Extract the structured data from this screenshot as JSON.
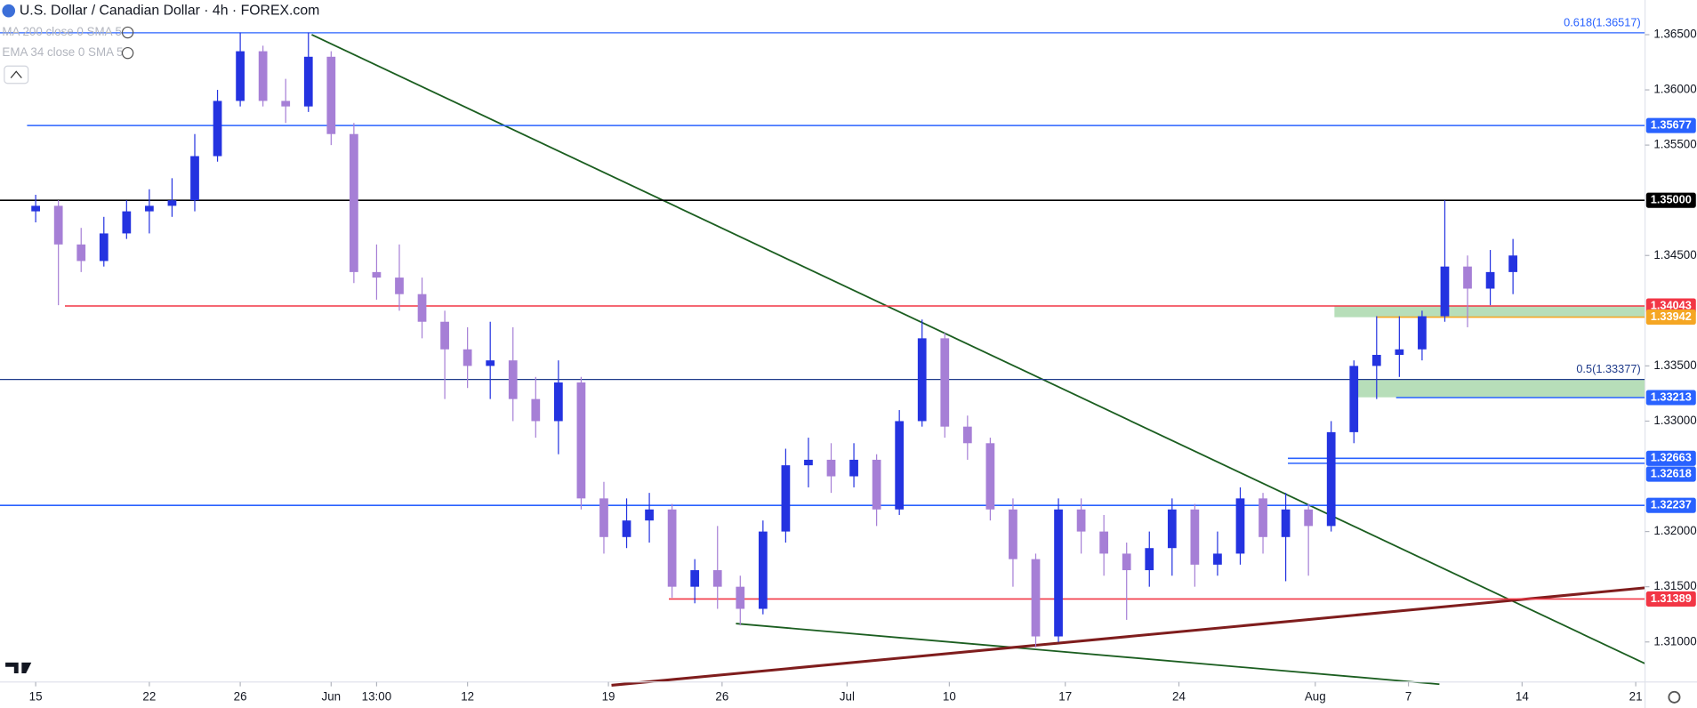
{
  "header": {
    "title": "U.S. Dollar / Canadian Dollar · 4h · FOREX.com",
    "indicators": [
      "MA 200 close 0 SMA 5",
      "EMA 34 close 0 SMA 5"
    ]
  },
  "chart_data": {
    "type": "candlestick",
    "up_color": "#2433e0",
    "down_color": "#a67fd6",
    "xlim": [
      -1.57,
      70.81
    ],
    "ylim": [
      1.3049,
      1.36814
    ],
    "xticks": [
      {
        "value": 0,
        "label": "15"
      },
      {
        "value": 5,
        "label": "22"
      },
      {
        "value": 9,
        "label": "26"
      },
      {
        "value": 13,
        "label": "Jun"
      },
      {
        "value": 15,
        "label": "13:00"
      },
      {
        "value": 19,
        "label": "12"
      },
      {
        "value": 25.2,
        "label": "19"
      },
      {
        "value": 30.2,
        "label": "26"
      },
      {
        "value": 35.7,
        "label": "Jul"
      },
      {
        "value": 40.2,
        "label": "10"
      },
      {
        "value": 45.3,
        "label": "17"
      },
      {
        "value": 50.3,
        "label": "24"
      },
      {
        "value": 56.3,
        "label": "Aug"
      },
      {
        "value": 60.4,
        "label": "7"
      },
      {
        "value": 65.4,
        "label": "14"
      },
      {
        "value": 70.4,
        "label": "21"
      }
    ],
    "yticks": [
      {
        "value": 1.31,
        "label": "1.31000"
      },
      {
        "value": 1.315,
        "label": "1.31500"
      },
      {
        "value": 1.32,
        "label": "1.32000"
      },
      {
        "value": 1.33,
        "label": "1.33000"
      },
      {
        "value": 1.335,
        "label": "1.33500"
      },
      {
        "value": 1.345,
        "label": "1.34500"
      },
      {
        "value": 1.355,
        "label": "1.35500"
      },
      {
        "value": 1.36,
        "label": "1.36000"
      },
      {
        "value": 1.365,
        "label": "1.36500"
      }
    ],
    "levels": [
      {
        "value": 1.36517,
        "label": "0.618(1.36517)",
        "color": "#2962ff",
        "style": "note"
      },
      {
        "value": 1.35677,
        "label": "1.35677",
        "color": "#2962ff",
        "style": "tag"
      },
      {
        "value": 1.35,
        "label": "1.35000",
        "color": "#000000",
        "style": "tag"
      },
      {
        "value": 1.34043,
        "label": "1.34043",
        "color": "#f23645",
        "style": "tag"
      },
      {
        "value": 1.33942,
        "label": "1.33942",
        "color": "#f5a623",
        "style": "tag"
      },
      {
        "value": 1.33377,
        "label": "0.5(1.33377)",
        "color": "#1e3a8a",
        "style": "note"
      },
      {
        "value": 1.33213,
        "label": "1.33213",
        "color": "#2962ff",
        "style": "tag"
      },
      {
        "value": 1.32663,
        "label": "1.32663",
        "color": "#2962ff",
        "style": "tag"
      },
      {
        "value": 1.32618,
        "label": "1.32618",
        "color": "#2962ff",
        "style": "tag"
      },
      {
        "value": 1.32237,
        "label": "1.32237",
        "color": "#2962ff",
        "style": "tag"
      },
      {
        "value": 1.31389,
        "label": "1.31389",
        "color": "#f23645",
        "style": "tag"
      }
    ],
    "candles": [
      [
        1.349,
        1.3505,
        1.348,
        1.3495
      ],
      [
        1.3495,
        1.35,
        1.3405,
        1.346
      ],
      [
        1.346,
        1.3475,
        1.3435,
        1.3445
      ],
      [
        1.3445,
        1.3485,
        1.344,
        1.347
      ],
      [
        1.347,
        1.35,
        1.3465,
        1.349
      ],
      [
        1.349,
        1.351,
        1.347,
        1.3495
      ],
      [
        1.3495,
        1.352,
        1.3485,
        1.35
      ],
      [
        1.35,
        1.356,
        1.349,
        1.354
      ],
      [
        1.354,
        1.36,
        1.3535,
        1.359
      ],
      [
        1.359,
        1.3652,
        1.3585,
        1.3635
      ],
      [
        1.3635,
        1.364,
        1.3585,
        1.359
      ],
      [
        1.359,
        1.361,
        1.357,
        1.3585
      ],
      [
        1.3585,
        1.3652,
        1.358,
        1.363
      ],
      [
        1.363,
        1.3635,
        1.355,
        1.356
      ],
      [
        1.356,
        1.357,
        1.3425,
        1.3435
      ],
      [
        1.3435,
        1.346,
        1.341,
        1.343
      ],
      [
        1.343,
        1.346,
        1.34,
        1.3415
      ],
      [
        1.3415,
        1.343,
        1.3375,
        1.339
      ],
      [
        1.339,
        1.34,
        1.332,
        1.3365
      ],
      [
        1.3365,
        1.3385,
        1.333,
        1.335
      ],
      [
        1.335,
        1.339,
        1.332,
        1.3355
      ],
      [
        1.3355,
        1.3385,
        1.33,
        1.332
      ],
      [
        1.332,
        1.334,
        1.3285,
        1.33
      ],
      [
        1.33,
        1.3355,
        1.327,
        1.3335
      ],
      [
        1.3335,
        1.334,
        1.322,
        1.323
      ],
      [
        1.323,
        1.3245,
        1.318,
        1.3195
      ],
      [
        1.3195,
        1.323,
        1.3185,
        1.321
      ],
      [
        1.321,
        1.3235,
        1.319,
        1.322
      ],
      [
        1.322,
        1.3225,
        1.314,
        1.315
      ],
      [
        1.315,
        1.3175,
        1.3135,
        1.3165
      ],
      [
        1.3165,
        1.3205,
        1.313,
        1.315
      ],
      [
        1.315,
        1.316,
        1.3115,
        1.313
      ],
      [
        1.313,
        1.321,
        1.3125,
        1.32
      ],
      [
        1.32,
        1.3275,
        1.319,
        1.326
      ],
      [
        1.326,
        1.3285,
        1.324,
        1.3265
      ],
      [
        1.3265,
        1.328,
        1.3235,
        1.325
      ],
      [
        1.325,
        1.328,
        1.324,
        1.3265
      ],
      [
        1.3265,
        1.327,
        1.3205,
        1.322
      ],
      [
        1.322,
        1.331,
        1.3215,
        1.33
      ],
      [
        1.33,
        1.3392,
        1.3295,
        1.3375
      ],
      [
        1.3375,
        1.338,
        1.3285,
        1.3295
      ],
      [
        1.3295,
        1.3305,
        1.3265,
        1.328
      ],
      [
        1.328,
        1.3285,
        1.321,
        1.322
      ],
      [
        1.322,
        1.323,
        1.315,
        1.3175
      ],
      [
        1.3175,
        1.318,
        1.3095,
        1.3105
      ],
      [
        1.3105,
        1.323,
        1.31,
        1.322
      ],
      [
        1.322,
        1.323,
        1.318,
        1.32
      ],
      [
        1.32,
        1.3215,
        1.316,
        1.318
      ],
      [
        1.318,
        1.319,
        1.312,
        1.3165
      ],
      [
        1.3165,
        1.32,
        1.315,
        1.3185
      ],
      [
        1.3185,
        1.323,
        1.316,
        1.322
      ],
      [
        1.322,
        1.3225,
        1.315,
        1.317
      ],
      [
        1.317,
        1.32,
        1.316,
        1.318
      ],
      [
        1.318,
        1.324,
        1.317,
        1.323
      ],
      [
        1.323,
        1.3235,
        1.318,
        1.3195
      ],
      [
        1.3195,
        1.3235,
        1.3155,
        1.322
      ],
      [
        1.322,
        1.3225,
        1.316,
        1.3205
      ],
      [
        1.3205,
        1.33,
        1.32,
        1.329
      ],
      [
        1.329,
        1.3355,
        1.328,
        1.335
      ],
      [
        1.335,
        1.3395,
        1.332,
        1.336
      ],
      [
        1.336,
        1.3395,
        1.334,
        1.3365
      ],
      [
        1.3365,
        1.34,
        1.3355,
        1.3395
      ],
      [
        1.3395,
        1.35,
        1.339,
        1.344
      ],
      [
        1.344,
        1.345,
        1.3385,
        1.342
      ],
      [
        1.342,
        1.3455,
        1.3405,
        1.3435
      ],
      [
        1.3435,
        1.3465,
        1.3415,
        1.345
      ]
    ]
  }
}
